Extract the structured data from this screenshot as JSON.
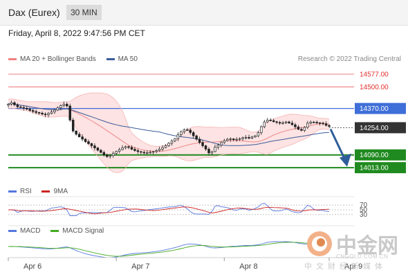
{
  "header": {
    "title": "Dax (Eurex)",
    "timeframe": "30 MIN"
  },
  "datetime": "Friday, April 8, 2022 9:47:56 PM CET",
  "credit": "Research © 2022 Trading Central",
  "legend": {
    "main": [
      {
        "name": "MA 20 + Bollinger Bands",
        "color": "#f08080"
      },
      {
        "name": "MA 50",
        "color": "#3b5b9a"
      }
    ],
    "rsi": [
      {
        "name": "RSI",
        "color": "#5577dd"
      },
      {
        "name": "9MA",
        "color": "#cc2222"
      }
    ],
    "macd": [
      {
        "name": "MACD",
        "color": "#5577dd"
      },
      {
        "name": "MACD Signal",
        "color": "#44aa22"
      }
    ]
  },
  "watermark": {
    "cn": "中金网",
    "url": "CNGOLD.COM.CN",
    "sub": "中文财经新媒体"
  },
  "chart_data": {
    "type": "candlestick",
    "x_labels": [
      "Apr 6",
      "Apr 7",
      "Apr 8",
      "Apr 9"
    ],
    "ylim": [
      13930,
      14640
    ],
    "levels": [
      {
        "value": 14577.0,
        "label": "14577.00",
        "kind": "resistance"
      },
      {
        "value": 14500.0,
        "label": "14500.00",
        "kind": "resistance"
      },
      {
        "value": 14370.0,
        "label": "14370.00",
        "kind": "pivot"
      },
      {
        "value": 14254.0,
        "label": "14254.00",
        "kind": "last"
      },
      {
        "value": 14090.0,
        "label": "14090.00",
        "kind": "support"
      },
      {
        "value": 14013.0,
        "label": "14013.00",
        "kind": "support"
      }
    ],
    "close": [
      14396,
      14405,
      14392,
      14380,
      14376,
      14372,
      14366,
      14358,
      14352,
      14346,
      14342,
      14336,
      14332,
      14340,
      14349,
      14360,
      14374,
      14388,
      14396,
      14385,
      14300,
      14234,
      14215,
      14199,
      14185,
      14170,
      14158,
      14145,
      14132,
      14118,
      14105,
      14090,
      14080,
      14086,
      14100,
      14111,
      14122,
      14133,
      14140,
      14135,
      14124,
      14116,
      14110,
      14106,
      14103,
      14104,
      14106,
      14110,
      14116,
      14124,
      14134,
      14146,
      14160,
      14174,
      14188,
      14212,
      14230,
      14242,
      14240,
      14225,
      14205,
      14185,
      14165,
      14145,
      14125,
      14102,
      14110,
      14136,
      14150,
      14164,
      14176,
      14184,
      14187,
      14182,
      14184,
      14188,
      14194,
      14196,
      14191,
      14198,
      14205,
      14225,
      14260,
      14289,
      14300,
      14297,
      14290,
      14286,
      14281,
      14284,
      14289,
      14282,
      14272,
      14259,
      14244,
      14238,
      14256,
      14281,
      14288,
      14287,
      14284,
      14282,
      14278,
      14268,
      14262
    ],
    "rsi": {
      "levels": [
        70,
        50,
        30
      ]
    },
    "macd": {
      "lines": [
        "MACD",
        "MACD Signal"
      ]
    }
  }
}
